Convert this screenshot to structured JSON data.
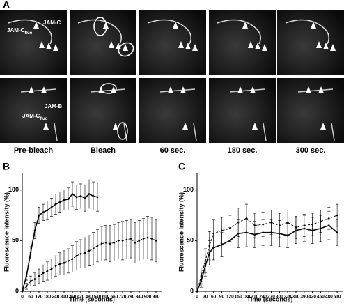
{
  "panel_a": {
    "label": "A",
    "cell_labels": {
      "jam_c": "JAM-C",
      "jam_c_fluo_1": {
        "main": "JAM-C",
        "sub": "fluo"
      },
      "jam_b": "JAM-B",
      "jam_c_fluo_2": {
        "main": "JAM-C",
        "sub": "fluo"
      }
    },
    "columns": [
      "Pre-bleach",
      "Bleach",
      "60 sec.",
      "180 sec.",
      "300 sec."
    ]
  },
  "chart_data": [
    {
      "type": "line",
      "panel_label": "B",
      "y_label": "Fluorescence intensity (%)",
      "x_label": "Time (seconds)",
      "x": [
        0,
        30,
        60,
        90,
        120,
        150,
        180,
        210,
        240,
        270,
        300,
        330,
        360,
        390,
        420,
        450,
        480,
        510,
        540,
        570,
        600,
        630,
        660,
        690,
        720,
        750,
        780,
        810,
        840,
        870,
        900,
        930,
        960
      ],
      "xlim": [
        0,
        1000
      ],
      "xticks": [
        0,
        60,
        120,
        180,
        240,
        300,
        360,
        420,
        480,
        540,
        600,
        660,
        720,
        780,
        840,
        900,
        960
      ],
      "ylim": [
        0,
        117
      ],
      "yticks": [
        0,
        50,
        100
      ],
      "series": [
        {
          "color": "#000000",
          "style": "solid",
          "values": [
            0,
            15,
            38,
            60,
            75,
            78,
            80,
            83,
            86,
            88,
            90,
            91,
            96,
            93,
            94,
            92,
            96,
            94,
            93,
            null,
            null,
            null,
            null,
            null,
            null,
            null,
            null,
            null,
            null,
            null,
            null,
            null,
            null
          ],
          "errors": [
            0,
            4,
            6,
            8,
            8,
            8,
            9,
            9,
            10,
            10,
            10,
            11,
            12,
            12,
            12,
            13,
            14,
            14,
            14,
            null,
            null,
            null,
            null,
            null,
            null,
            null,
            null,
            null,
            null,
            null,
            null,
            null,
            null
          ]
        },
        {
          "color": "#000000",
          "style": "dashed",
          "values": [
            0,
            5,
            10,
            12,
            15,
            18,
            20,
            22,
            25,
            27,
            28,
            30,
            32,
            35,
            37,
            38,
            40,
            42,
            45,
            47,
            48,
            47,
            48,
            50,
            50,
            51,
            52,
            48,
            50,
            52,
            53,
            52,
            50
          ],
          "errors": [
            0,
            3,
            5,
            6,
            7,
            8,
            9,
            10,
            10,
            11,
            12,
            12,
            13,
            14,
            14,
            15,
            15,
            16,
            16,
            17,
            17,
            18,
            18,
            18,
            19,
            19,
            19,
            20,
            20,
            20,
            21,
            21,
            21
          ]
        }
      ]
    },
    {
      "type": "line",
      "panel_label": "C",
      "y_label": "Fluorescence intensity (%)",
      "x_label": "Time (seconds)",
      "x": [
        0,
        15,
        30,
        45,
        60,
        90,
        120,
        150,
        180,
        210,
        240,
        270,
        300,
        330,
        360,
        390,
        420,
        450,
        480,
        510
      ],
      "xlim": [
        0,
        530
      ],
      "xticks": [
        0,
        30,
        60,
        90,
        120,
        150,
        180,
        210,
        240,
        270,
        300,
        330,
        360,
        390,
        420,
        450,
        480,
        510
      ],
      "ylim": [
        0,
        117
      ],
      "yticks": [
        0,
        50,
        100
      ],
      "series": [
        {
          "color": "#000000",
          "style": "solid",
          "values": [
            0,
            10,
            25,
            38,
            43,
            46,
            50,
            57,
            58,
            56,
            58,
            58,
            57,
            55,
            60,
            62,
            60,
            62,
            65,
            58
          ],
          "errors": [
            0,
            6,
            10,
            12,
            12,
            12,
            13,
            14,
            14,
            13,
            13,
            13,
            13,
            12,
            13,
            13,
            13,
            13,
            14,
            13
          ]
        },
        {
          "color": "#000000",
          "style": "dashed",
          "values": [
            0,
            15,
            30,
            45,
            57,
            60,
            62,
            68,
            72,
            65,
            66,
            68,
            65,
            68,
            63,
            65,
            66,
            69,
            72,
            75
          ],
          "errors": [
            0,
            8,
            12,
            14,
            14,
            13,
            13,
            14,
            14,
            12,
            12,
            12,
            12,
            12,
            11,
            11,
            11,
            11,
            11,
            11
          ]
        }
      ]
    }
  ]
}
